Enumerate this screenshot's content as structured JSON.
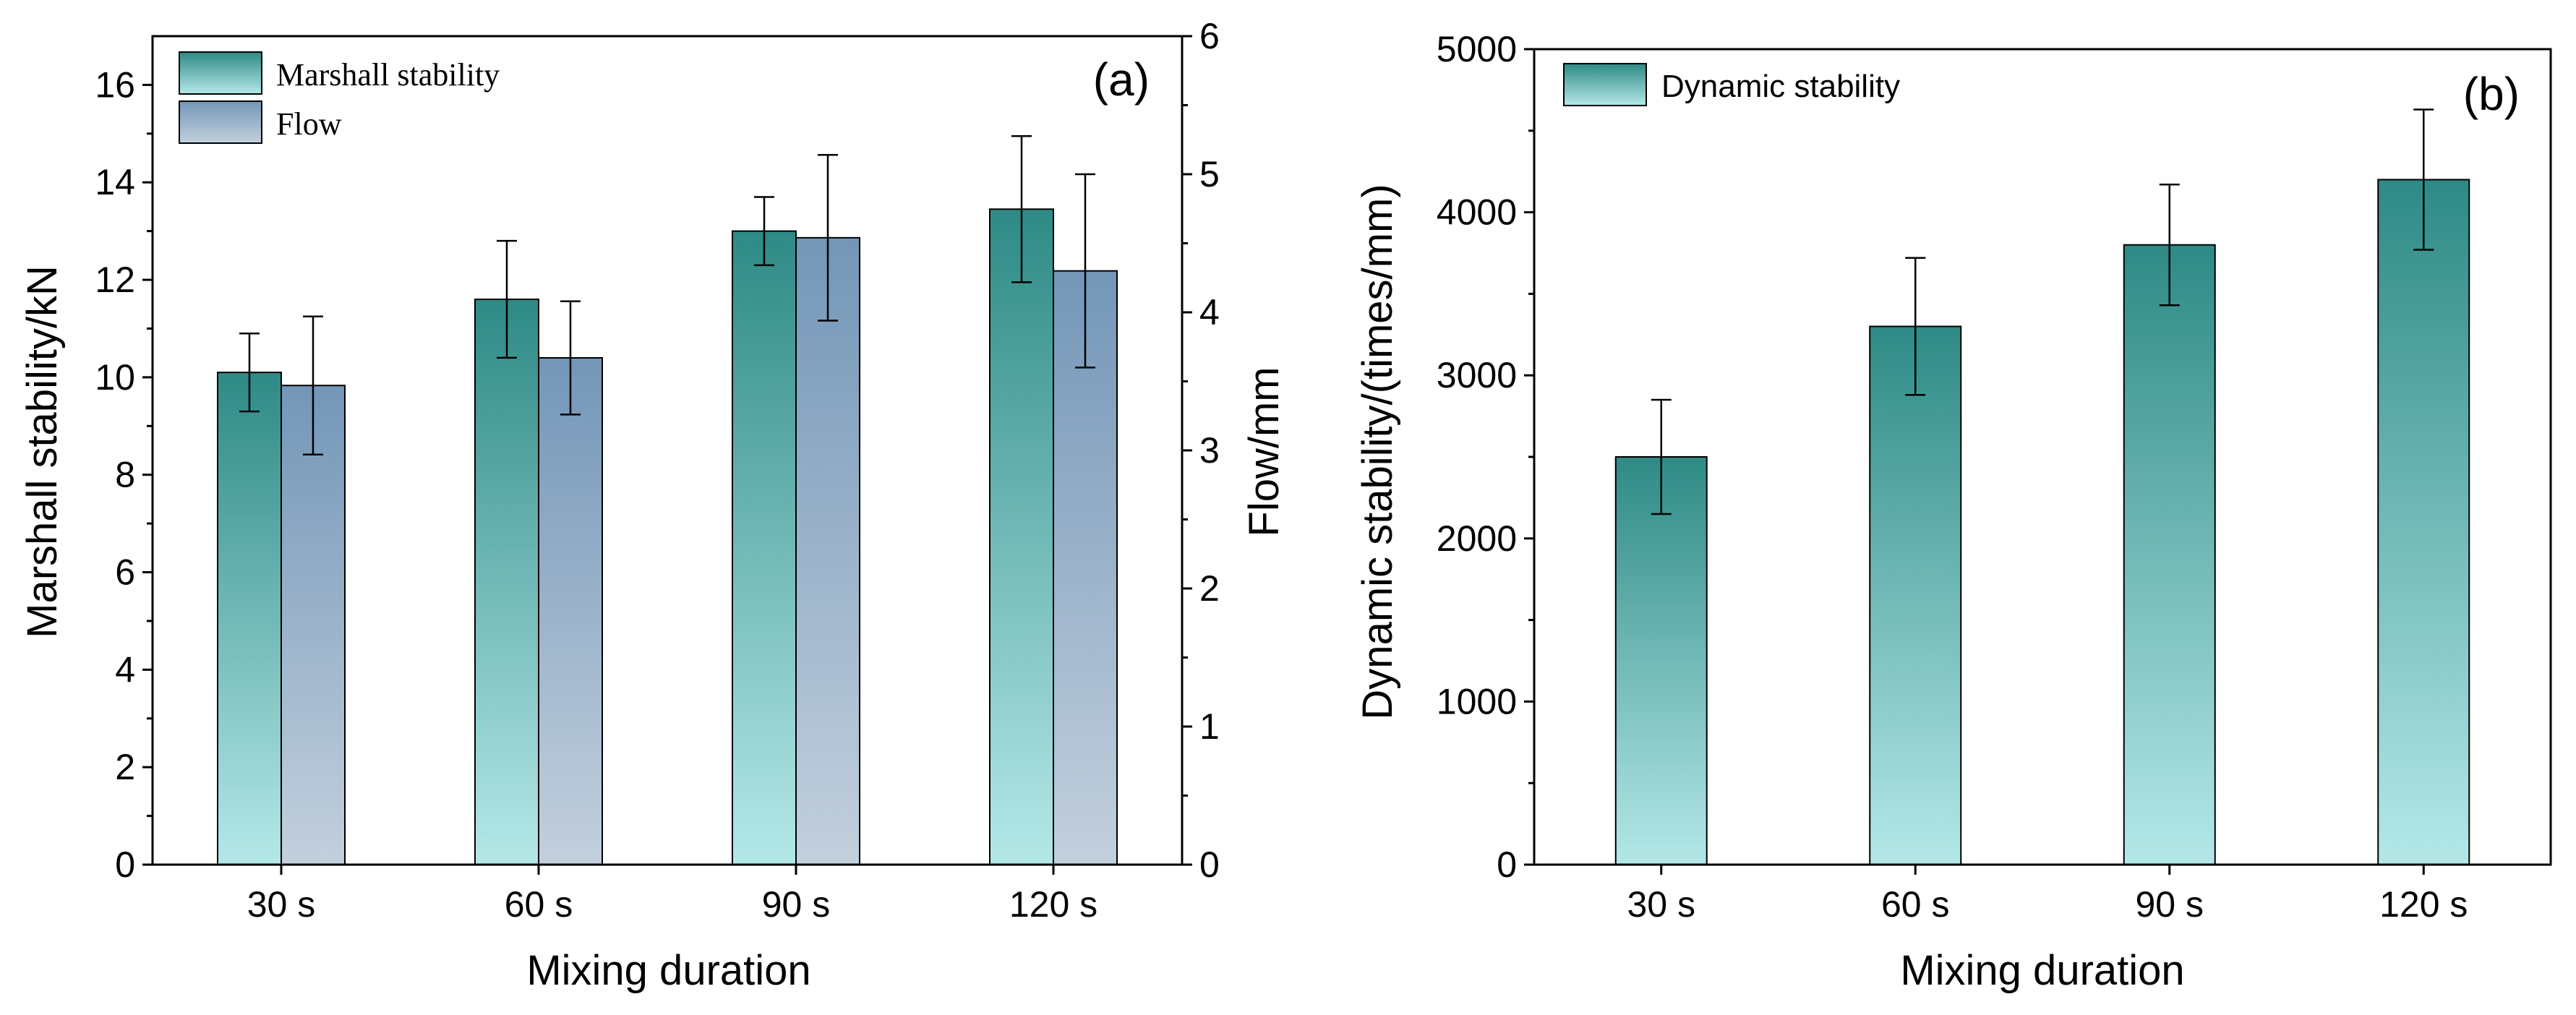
{
  "colors": {
    "stability_top": "#2e8a85",
    "stability_bottom": "#b4e8e8",
    "flow_top": "#7396b8",
    "flow_bottom": "#c3d0dd",
    "axis": "#000000"
  },
  "chart_data": [
    {
      "type": "bar",
      "panel_label": "(a)",
      "xlabel": "Mixing duration",
      "ylabel": "Marshall stability/kN",
      "y2label": "Flow/mm",
      "categories": [
        "30 s",
        "60 s",
        "90 s",
        "120 s"
      ],
      "ylim": [
        0,
        17
      ],
      "yticks": [
        0,
        2,
        4,
        6,
        8,
        10,
        12,
        14,
        16
      ],
      "y2lim": [
        0,
        6
      ],
      "y2ticks": [
        0,
        1,
        2,
        3,
        4,
        5,
        6
      ],
      "legend_position": "top-left",
      "grid": false,
      "series": [
        {
          "name": "Marshall stability",
          "axis": "left",
          "values": [
            10.1,
            11.6,
            13.0,
            13.45
          ],
          "errors": [
            0.8,
            1.2,
            0.7,
            1.5
          ]
        },
        {
          "name": "Flow",
          "axis": "right",
          "values": [
            3.47,
            3.67,
            4.54,
            4.3
          ],
          "errors": [
            0.5,
            0.41,
            0.6,
            0.7
          ]
        }
      ]
    },
    {
      "type": "bar",
      "panel_label": "(b)",
      "xlabel": "Mixing duration",
      "ylabel": "Dynamic stability/(times/mm)",
      "categories": [
        "30 s",
        "60 s",
        "90 s",
        "120 s"
      ],
      "ylim": [
        0,
        5000
      ],
      "yticks": [
        0,
        1000,
        2000,
        3000,
        4000,
        5000
      ],
      "legend_position": "top-left",
      "grid": false,
      "series": [
        {
          "name": "Dynamic stability",
          "axis": "left",
          "values": [
            2500,
            3300,
            3800,
            4200
          ],
          "errors": [
            350,
            420,
            370,
            430
          ]
        }
      ]
    }
  ]
}
